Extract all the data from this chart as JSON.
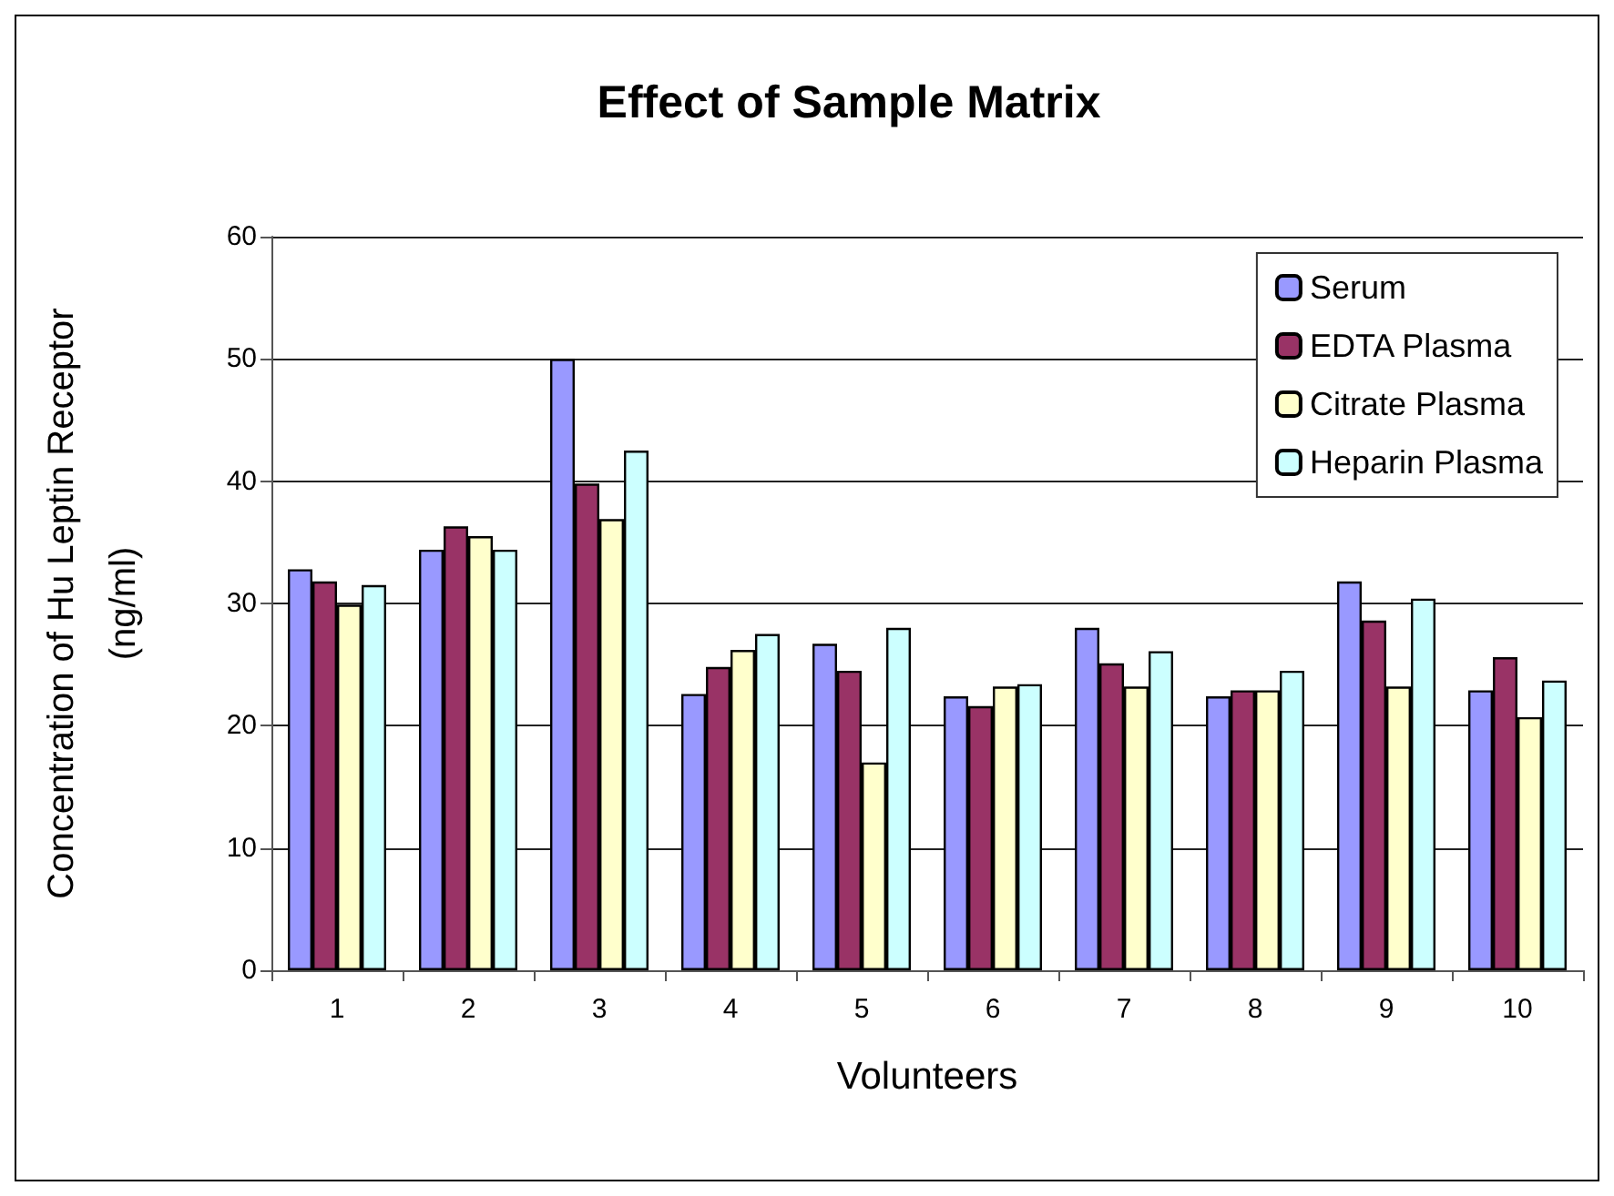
{
  "chart_data": {
    "type": "bar",
    "title": "Effect of Sample Matrix",
    "xlabel": "Volunteers",
    "ylabel": "Concentration of Hu Leptin Receptor\n(ng/ml)",
    "categories": [
      "1",
      "2",
      "3",
      "4",
      "5",
      "6",
      "7",
      "8",
      "9",
      "10"
    ],
    "series": [
      {
        "name": "Serum",
        "color": "#9999ff",
        "values": [
          32.8,
          34.4,
          50,
          22.6,
          26.7,
          22.4,
          28,
          22.4,
          31.8,
          22.9
        ]
      },
      {
        "name": "EDTA Plasma",
        "color": "#993366",
        "values": [
          31.8,
          36.3,
          39.8,
          24.8,
          24.5,
          21.6,
          25.1,
          22.9,
          28.6,
          25.6
        ]
      },
      {
        "name": "Citrate Plasma",
        "color": "#ffffcc",
        "values": [
          29.9,
          35.5,
          36.9,
          26.2,
          17,
          23.2,
          23.2,
          22.9,
          23.2,
          20.7
        ]
      },
      {
        "name": "Heparin Plasma",
        "color": "#ccffff",
        "values": [
          31.5,
          34.4,
          42.5,
          27.5,
          28,
          23.4,
          26.1,
          24.5,
          30.4,
          23.7
        ]
      }
    ],
    "ylim": [
      0,
      60
    ],
    "yticks": [
      0,
      10,
      20,
      30,
      40,
      50,
      60
    ],
    "grid": "y",
    "legend": "top right"
  }
}
